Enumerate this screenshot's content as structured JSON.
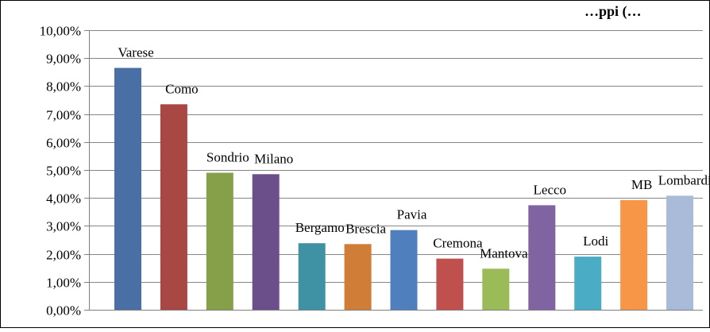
{
  "chart_data": {
    "type": "bar",
    "title": "…ppi (…",
    "xlabel": "",
    "ylabel": "",
    "ylim": [
      0,
      10
    ],
    "y_tick_labels": [
      "0,00%",
      "1,00%",
      "2,00%",
      "3,00%",
      "4,00%",
      "5,00%",
      "6,00%",
      "7,00%",
      "8,00%",
      "9,00%",
      "10,00%"
    ],
    "grid": true,
    "legend": "none",
    "categories": [
      "Varese",
      "Como",
      "Sondrio",
      "Milano",
      "Bergamo",
      "Brescia",
      "Pavia",
      "Cremona",
      "Mantova",
      "Lecco",
      "Lodi",
      "MB",
      "Lombardia"
    ],
    "values": [
      8.65,
      7.35,
      4.9,
      4.85,
      2.38,
      2.35,
      2.85,
      1.83,
      1.47,
      3.74,
      1.9,
      3.92,
      4.08
    ],
    "colors": [
      "#4a6fa5",
      "#a84744",
      "#86a04a",
      "#6a4f8a",
      "#3f92a3",
      "#d07d38",
      "#4f80bd",
      "#c0504d",
      "#9bbb59",
      "#8064a2",
      "#4bacc6",
      "#f79646",
      "#a9bbd8"
    ]
  }
}
